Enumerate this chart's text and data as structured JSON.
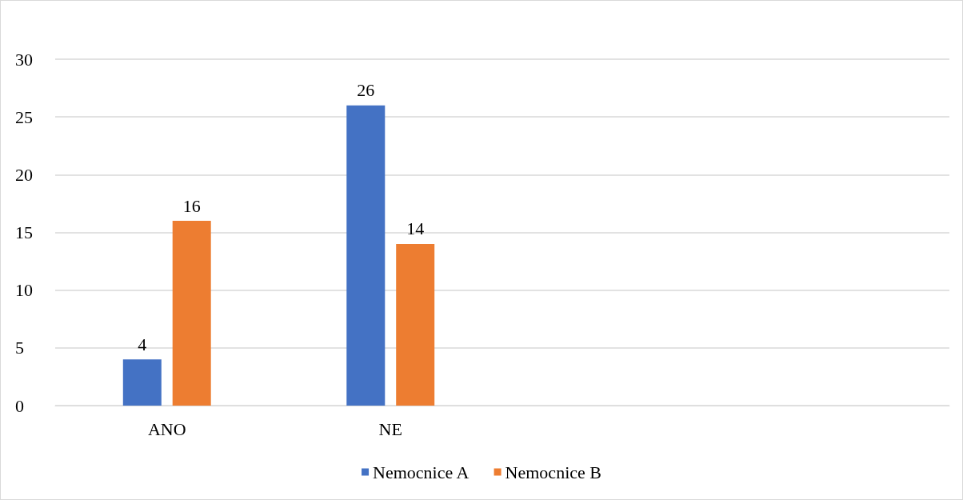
{
  "chart_data": {
    "type": "bar",
    "categories": [
      "ANO",
      "NE",
      null,
      null
    ],
    "series": [
      {
        "name": "Nemocnice A",
        "color": "#4472c4",
        "values": [
          4,
          26,
          null,
          null
        ]
      },
      {
        "name": "Nemocnice B",
        "color": "#ed7d31",
        "values": [
          16,
          14,
          null,
          null
        ]
      }
    ],
    "ylim": [
      0,
      30
    ],
    "yticks": [
      0,
      5,
      10,
      15,
      20,
      25,
      30
    ],
    "grid": "y",
    "legend": "bottom",
    "data_labels": true
  }
}
